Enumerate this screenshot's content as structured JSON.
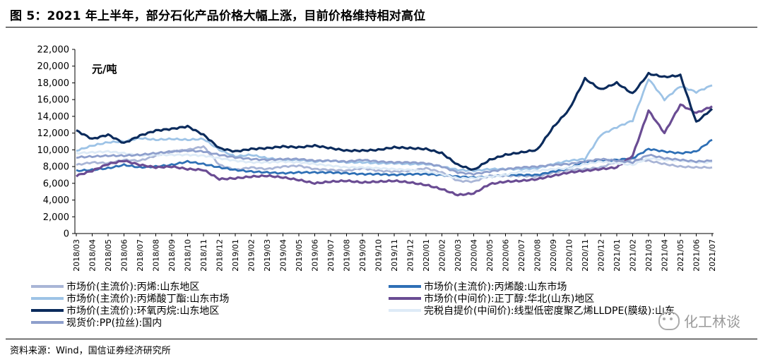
{
  "header": {
    "title": "图 5：2021 年上半年，部分石化产品价格大幅上涨，目前价格维持相对高位"
  },
  "footer": {
    "source": "资料来源：Wind，国信证券经济研究所"
  },
  "watermark": {
    "text": "化工林谈",
    "icon": "wechat-icon"
  },
  "chart_data": {
    "type": "line",
    "unit_label": "元/吨",
    "ylim": [
      0,
      22000
    ],
    "yticks": [
      "0",
      "2,000",
      "4,000",
      "6,000",
      "8,000",
      "10,000",
      "12,000",
      "14,000",
      "16,000",
      "18,000",
      "20,000",
      "22,000"
    ],
    "x": [
      "2018/03",
      "2018/04",
      "2018/05",
      "2018/06",
      "2018/07",
      "2018/08",
      "2018/09",
      "2018/10",
      "2018/11",
      "2018/12",
      "2019/01",
      "2019/02",
      "2019/03",
      "2019/04",
      "2019/05",
      "2019/06",
      "2019/07",
      "2019/08",
      "2019/09",
      "2019/10",
      "2019/11",
      "2019/12",
      "2020/01",
      "2020/02",
      "2020/03",
      "2020/04",
      "2020/05",
      "2020/06",
      "2020/07",
      "2020/08",
      "2020/09",
      "2020/10",
      "2020/11",
      "2020/12",
      "2021/01",
      "2021/02",
      "2021/03",
      "2021/04",
      "2021/05",
      "2021/06",
      "2021/07"
    ],
    "grid": false,
    "legend_position": "bottom",
    "series": [
      {
        "name": "市场价(主流价):丙烯:山东地区",
        "color": "#a9b5d6",
        "values": [
          8200,
          8500,
          8400,
          8800,
          8700,
          9300,
          9800,
          10000,
          10400,
          8200,
          7600,
          7900,
          7700,
          8000,
          8100,
          7700,
          7600,
          7500,
          7800,
          7500,
          7400,
          7500,
          7800,
          7300,
          6300,
          6200,
          6900,
          6900,
          6900,
          6800,
          7300,
          7600,
          7700,
          7900,
          8600,
          8900,
          8700,
          8300,
          8000,
          7900,
          7900
        ]
      },
      {
        "name": "市场价(主流价):丙烯酸:山东市场",
        "color": "#2e6fb5",
        "values": [
          7500,
          7600,
          7800,
          8200,
          7900,
          8000,
          8200,
          8600,
          8300,
          7900,
          7600,
          7400,
          7300,
          7200,
          7300,
          7300,
          7300,
          7200,
          7100,
          7100,
          7000,
          7100,
          7100,
          7000,
          6800,
          6700,
          6800,
          7000,
          7000,
          7000,
          7400,
          7800,
          8600,
          8700,
          8800,
          9000,
          10100,
          9800,
          9600,
          9800,
          11200
        ]
      },
      {
        "name": "市场价(主流价):丙烯酸丁酯:山东市场",
        "color": "#9dc3e6",
        "values": [
          9900,
          10500,
          10900,
          11000,
          11400,
          11200,
          11300,
          11200,
          11300,
          10000,
          9200,
          9400,
          9000,
          8800,
          8800,
          8600,
          8700,
          8500,
          8500,
          8400,
          8400,
          8300,
          8300,
          8000,
          7600,
          7500,
          7700,
          7700,
          7700,
          7800,
          8300,
          8700,
          8900,
          11800,
          12700,
          13500,
          18500,
          16000,
          17600,
          16900,
          17700
        ]
      },
      {
        "name": "市场价(中间价):正丁醇:华北(山东)地区",
        "color": "#6a4c93",
        "values": [
          6900,
          7500,
          8300,
          8700,
          8200,
          7900,
          8000,
          7700,
          7600,
          6500,
          6600,
          6800,
          6900,
          6700,
          6400,
          6000,
          6200,
          6300,
          6100,
          6200,
          6300,
          6100,
          5800,
          5300,
          4600,
          4800,
          5900,
          6200,
          6300,
          6500,
          6900,
          7300,
          7500,
          7700,
          7900,
          9300,
          14700,
          12000,
          15400,
          14400,
          15200
        ]
      },
      {
        "name": "市场价(主流价):环氧丙烷:山东地区",
        "color": "#0b2b5c",
        "values": [
          12300,
          11300,
          11800,
          10800,
          11700,
          12300,
          12500,
          12800,
          11800,
          10200,
          9800,
          10100,
          10200,
          10400,
          10300,
          10500,
          10200,
          9900,
          9900,
          10000,
          10300,
          10200,
          10100,
          9600,
          8200,
          7600,
          8800,
          9400,
          9700,
          10000,
          12700,
          14800,
          18500,
          17200,
          18000,
          16700,
          19100,
          18700,
          18900,
          13300,
          14900
        ]
      },
      {
        "name": "完税自提价(中间价):线型低密度聚乙烯LLDPE(膜级):山东",
        "color": "#deebf7",
        "values": [
          9600,
          9700,
          9800,
          9600,
          9300,
          9400,
          9400,
          9400,
          9300,
          9000,
          8700,
          8500,
          8500,
          8600,
          8500,
          8300,
          8100,
          7900,
          7900,
          7800,
          7700,
          7600,
          7400,
          7100,
          6600,
          6600,
          6800,
          7000,
          7400,
          7500,
          7700,
          7800,
          8300,
          8600,
          8400,
          8200,
          9000,
          8800,
          8700,
          8500,
          8500
        ]
      },
      {
        "name": "现货价:PP(拉丝):国内",
        "color": "#8e9fcc",
        "values": [
          9100,
          9200,
          9300,
          9300,
          9400,
          9600,
          9800,
          9900,
          9800,
          9400,
          9100,
          8900,
          8800,
          8900,
          8900,
          8700,
          8700,
          8600,
          8800,
          8600,
          8500,
          8500,
          8400,
          8000,
          7300,
          7100,
          7400,
          7700,
          7900,
          8000,
          8200,
          8300,
          8600,
          8900,
          8700,
          8500,
          9400,
          9000,
          8800,
          8600,
          8700
        ]
      }
    ]
  }
}
